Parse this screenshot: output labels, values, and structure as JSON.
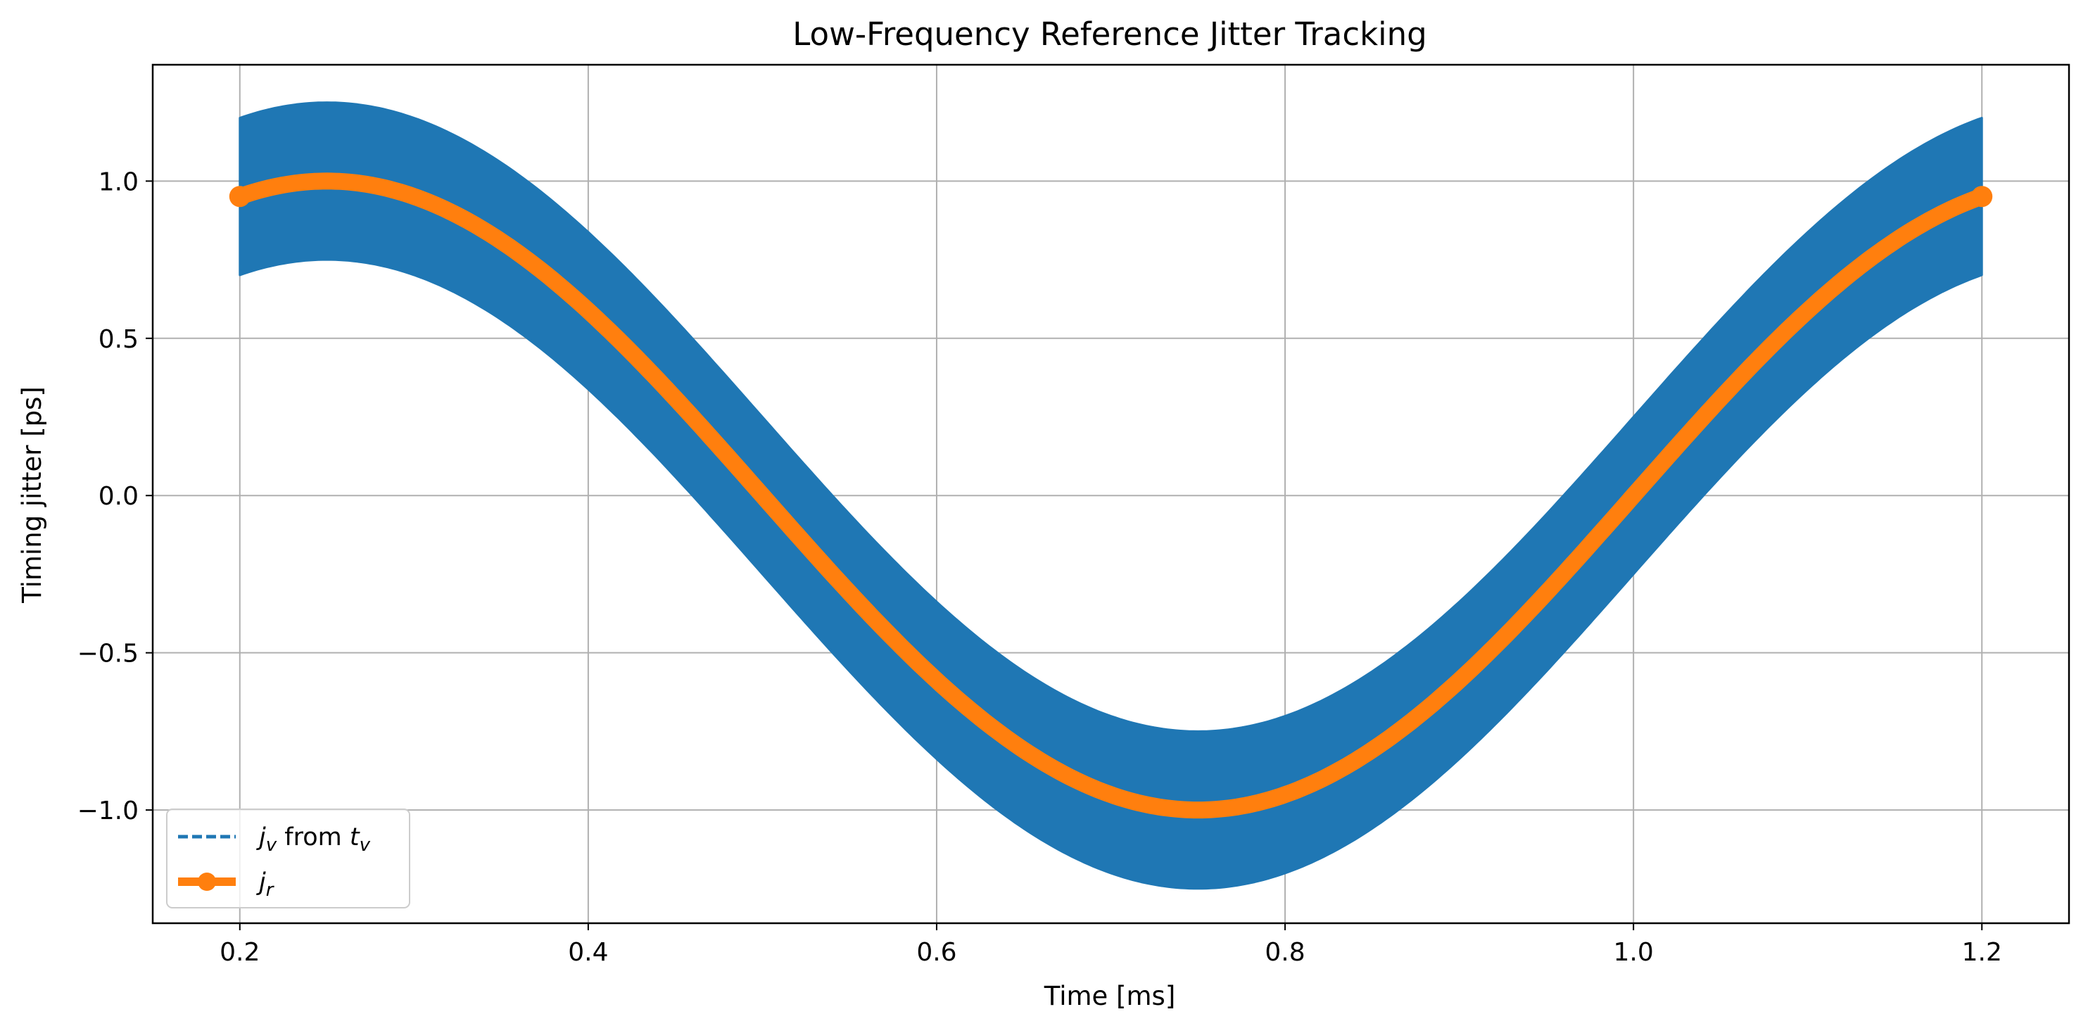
{
  "chart_data": {
    "type": "line",
    "title": "Low-Frequency Reference Jitter Tracking",
    "xlabel": "Time [ms]",
    "ylabel": "Timing jitter [ps]",
    "xlim": [
      0.15,
      1.25
    ],
    "ylim": [
      -1.36,
      1.37
    ],
    "x_ticks": [
      0.2,
      0.4,
      0.6,
      0.8,
      1.0,
      1.2
    ],
    "x_tick_labels": [
      "0.2",
      "0.4",
      "0.6",
      "0.8",
      "1.0",
      "1.2"
    ],
    "y_ticks": [
      -1.0,
      -0.5,
      0.0,
      0.5,
      1.0
    ],
    "y_tick_labels": [
      "−1.0",
      "−0.5",
      "0.0",
      "0.5",
      "1.0"
    ],
    "grid": true,
    "legend_position": "lower-left",
    "series": [
      {
        "name": "j_v from t_v",
        "legend_label": {
          "j": "j",
          "sub1": "v",
          "mid": " from ",
          "t": "t",
          "sub2": "v"
        },
        "style": "dashed",
        "color": "#1f77b4",
        "x_range": [
          0.2,
          1.2
        ],
        "model": "sin(2*pi*t/1.0) + 0.25*sin(2*pi*t/0.0005)",
        "center": {
          "x": [
            0.2,
            0.25,
            0.5,
            0.75,
            1.0,
            1.2
          ],
          "y": [
            0.95,
            1.0,
            0.0,
            -1.0,
            0.0,
            0.95
          ]
        },
        "envelope_upper": {
          "x": [
            0.2,
            0.25,
            0.5,
            0.75,
            1.0,
            1.2
          ],
          "y": [
            1.2,
            1.25,
            0.25,
            -0.75,
            0.25,
            1.2
          ]
        },
        "envelope_lower": {
          "x": [
            0.2,
            0.25,
            0.5,
            0.75,
            1.0,
            1.2
          ],
          "y": [
            0.7,
            0.75,
            -0.25,
            -1.25,
            -0.25,
            0.7
          ]
        }
      },
      {
        "name": "j_r",
        "legend_label": {
          "j": "j",
          "sub1": "r"
        },
        "style": "solid-with-markers",
        "color": "#ff7f0e",
        "model": "sin(2*pi*t/1.0)",
        "x": [
          0.2,
          0.25,
          0.35,
          0.5,
          0.65,
          0.75,
          0.85,
          1.0,
          1.1,
          1.2
        ],
        "y": [
          0.95,
          1.0,
          0.81,
          0.0,
          -0.81,
          -1.0,
          -0.81,
          0.0,
          0.59,
          0.95
        ]
      }
    ]
  }
}
